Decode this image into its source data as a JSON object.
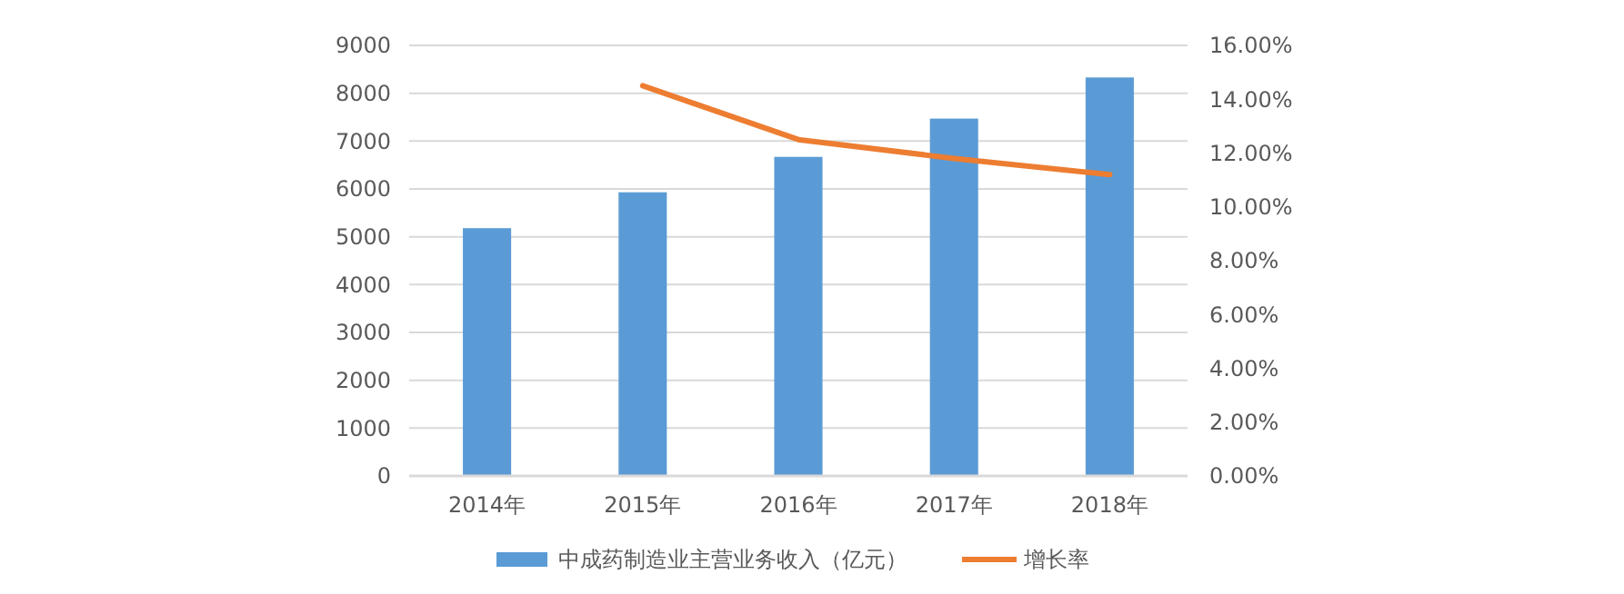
{
  "chart_data": {
    "type": "bar",
    "categories": [
      "2014年",
      "2015年",
      "2016年",
      "2017年",
      "2018年"
    ],
    "series": [
      {
        "name": "中成药制造业主营业务收入（亿元）",
        "color": "#5b9bd5",
        "values": [
          5180,
          5930,
          6670,
          7470,
          8330
        ]
      },
      {
        "name": "增长率",
        "type": "line",
        "axis": "y2",
        "color": "#ed7d31",
        "values": [
          null,
          14.5,
          12.5,
          11.8,
          11.2
        ]
      }
    ],
    "ylim": [
      0,
      9000
    ],
    "yticks": [
      0,
      1000,
      2000,
      3000,
      4000,
      5000,
      6000,
      7000,
      8000,
      9000
    ],
    "y2lim": [
      0,
      16
    ],
    "y2ticks": [
      {
        "value": 0,
        "label": "0.00%"
      },
      {
        "value": 2,
        "label": "2.00%"
      },
      {
        "value": 4,
        "label": "4.00%"
      },
      {
        "value": 6,
        "label": "6.00%"
      },
      {
        "value": 8,
        "label": "8.00%"
      },
      {
        "value": 10,
        "label": "10.00%"
      },
      {
        "value": 12,
        "label": "12.00%"
      },
      {
        "value": 14,
        "label": "14.00%"
      },
      {
        "value": 16,
        "label": "16.00%"
      }
    ],
    "grid": "y",
    "legend": "bottom",
    "marker": "none",
    "line_style": "solid"
  }
}
